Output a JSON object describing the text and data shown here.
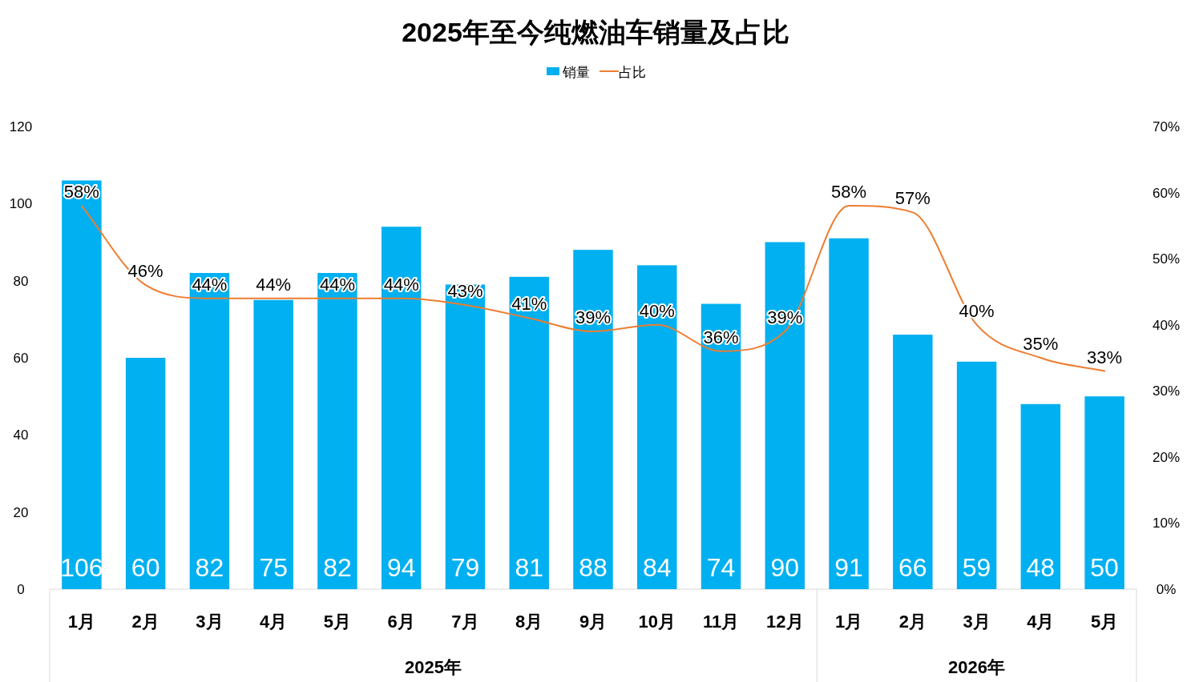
{
  "chart_data": {
    "type": "bar",
    "title": "2025年至今纯燃油车销量及占比",
    "categories": [
      "1月",
      "2月",
      "3月",
      "4月",
      "5月",
      "6月",
      "7月",
      "8月",
      "9月",
      "10月",
      "11月",
      "12月",
      "1月",
      "2月",
      "3月",
      "4月",
      "5月"
    ],
    "series": [
      {
        "name": "销量",
        "color": "#00b0f0",
        "values": [
          106,
          60,
          82,
          75,
          82,
          94,
          79,
          81,
          88,
          84,
          74,
          90,
          91,
          66,
          59,
          48,
          50
        ],
        "value_labels": [
          "106",
          "60",
          "82",
          "75",
          "82",
          "94",
          "79",
          "81",
          "88",
          "84",
          "74",
          "90",
          "91",
          "66",
          "59",
          "48",
          "50"
        ]
      },
      {
        "name": "占比",
        "type": "line",
        "axis": "y2",
        "color": "#ed7d31",
        "marker": "none",
        "values": [
          58,
          46,
          44,
          44,
          44,
          44,
          43,
          41,
          39,
          40,
          36,
          39,
          58,
          57,
          40,
          35,
          33
        ],
        "value_labels": [
          "58%",
          "46%",
          "44%",
          "44%",
          "44%",
          "44%",
          "43%",
          "41%",
          "39%",
          "40%",
          "36%",
          "39%",
          "58%",
          "57%",
          "40%",
          "35%",
          "33%"
        ]
      }
    ],
    "ylim": [
      0,
      120
    ],
    "yticks": [
      0,
      20,
      40,
      60,
      80,
      100,
      120
    ],
    "y2lim": [
      0,
      70
    ],
    "y2ticks": [
      {
        "value": 0,
        "label": "0%"
      },
      {
        "value": 10,
        "label": "10%"
      },
      {
        "value": 20,
        "label": "20%"
      },
      {
        "value": 30,
        "label": "30%"
      },
      {
        "value": 40,
        "label": "40%"
      },
      {
        "value": 50,
        "label": "50%"
      },
      {
        "value": 60,
        "label": "60%"
      },
      {
        "value": 70,
        "label": "70%"
      }
    ],
    "legend": "top",
    "annotations": [
      "2025年",
      "2026年"
    ]
  }
}
